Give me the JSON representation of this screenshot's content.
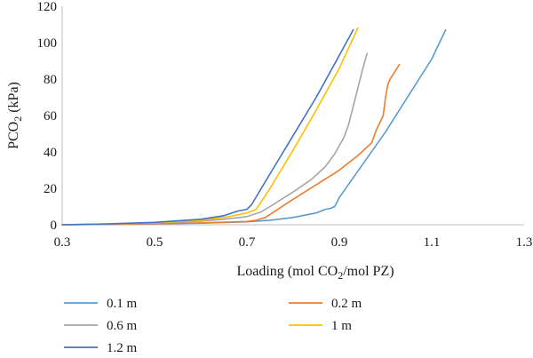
{
  "chart_data": {
    "type": "line",
    "title": "",
    "xlabel_parts": [
      "Loading (mol CO",
      "2",
      "/mol PZ)"
    ],
    "ylabel_parts": [
      "PCO",
      "2",
      " (kPa)"
    ],
    "xlim": [
      0.3,
      1.3
    ],
    "ylim": [
      0,
      120
    ],
    "xticks": [
      0.3,
      0.5,
      0.7,
      0.9,
      1.1,
      1.3
    ],
    "xtick_labels": [
      "0.3",
      "0.5",
      "0.7",
      "0.9",
      "1.1",
      "1.3"
    ],
    "yticks": [
      0,
      20,
      40,
      60,
      80,
      100,
      120
    ],
    "ytick_labels": [
      "0",
      "20",
      "40",
      "60",
      "80",
      "100",
      "120"
    ],
    "grid": false,
    "legend_placement": "bottom",
    "series": [
      {
        "name": "0.1 m",
        "color": "#5b9bd5",
        "x": [
          0.3,
          0.4,
          0.5,
          0.6,
          0.7,
          0.75,
          0.8,
          0.85,
          0.87,
          0.88,
          0.89,
          0.9,
          0.95,
          1.0,
          1.05,
          1.1,
          1.13
        ],
        "y": [
          0,
          0.2,
          0.5,
          0.9,
          1.6,
          2.5,
          4,
          6.5,
          8.5,
          9,
          10,
          15,
          33,
          51,
          71,
          91,
          107
        ]
      },
      {
        "name": "0.2 m",
        "color": "#ed7d31",
        "x": [
          0.32,
          0.4,
          0.5,
          0.6,
          0.65,
          0.7,
          0.72,
          0.74,
          0.77,
          0.8,
          0.85,
          0.9,
          0.94,
          0.97,
          0.98,
          0.995,
          1.0,
          1.005,
          1.01,
          1.02,
          1.03
        ],
        "y": [
          0,
          0.3,
          0.6,
          1.0,
          1.4,
          1.8,
          2.5,
          4,
          9,
          14,
          22,
          30,
          38,
          45,
          52,
          60,
          70,
          77,
          80,
          84,
          88
        ]
      },
      {
        "name": "0.6 m",
        "color": "#a5a5a5",
        "x": [
          0.3,
          0.4,
          0.5,
          0.6,
          0.65,
          0.7,
          0.73,
          0.75,
          0.8,
          0.84,
          0.87,
          0.89,
          0.91,
          0.92,
          0.93,
          0.94,
          0.95,
          0.96
        ],
        "y": [
          0,
          0.4,
          1.0,
          2.0,
          3.0,
          4.5,
          7,
          10,
          18,
          25,
          32,
          39,
          48,
          55,
          65,
          75,
          85,
          94
        ]
      },
      {
        "name": "1 m",
        "color": "#ffc000",
        "x": [
          0.3,
          0.4,
          0.5,
          0.6,
          0.65,
          0.7,
          0.72,
          0.75,
          0.8,
          0.85,
          0.9,
          0.94
        ],
        "y": [
          0,
          0.5,
          1.1,
          2.5,
          4.0,
          6.5,
          8.5,
          20,
          41,
          63,
          86,
          108
        ]
      },
      {
        "name": "1.2 m",
        "color": "#4472c4",
        "x": [
          0.3,
          0.4,
          0.5,
          0.6,
          0.65,
          0.68,
          0.7,
          0.71,
          0.75,
          0.8,
          0.85,
          0.9,
          0.93
        ],
        "y": [
          0,
          0.5,
          1.3,
          3.0,
          5.0,
          7.5,
          8.5,
          11,
          28,
          49,
          70,
          93,
          107
        ]
      }
    ]
  }
}
